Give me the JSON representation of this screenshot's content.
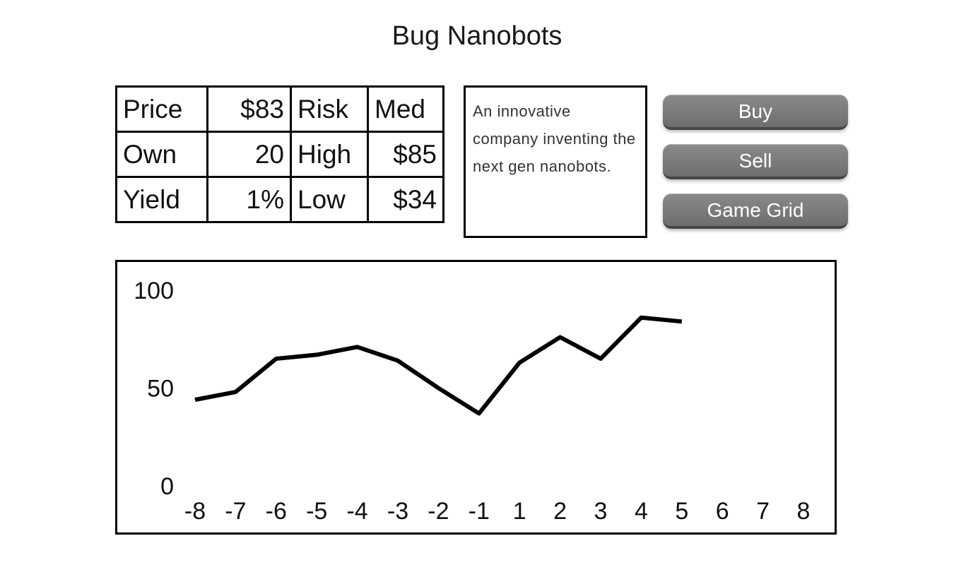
{
  "title": "Bug Nanobots",
  "stats": {
    "rows": [
      [
        "Price",
        "$83",
        "Risk",
        "Med"
      ],
      [
        "Own",
        "20",
        "High",
        "$85"
      ],
      [
        "Yield",
        "1%",
        "Low",
        "$34"
      ]
    ]
  },
  "description": "An innovative company inventing the next gen nanobots.",
  "buttons": {
    "buy": "Buy",
    "sell": "Sell",
    "game_grid": "Game Grid"
  },
  "chart_data": {
    "type": "line",
    "title": "",
    "xlabel": "",
    "ylabel": "",
    "x_ticks": [
      "-8",
      "-7",
      "-6",
      "-5",
      "-4",
      "-3",
      "-2",
      "-1",
      "1",
      "2",
      "3",
      "4",
      "5",
      "6",
      "7",
      "8"
    ],
    "y_ticks": [
      "0",
      "50",
      "100"
    ],
    "ylim": [
      0,
      100
    ],
    "series": [
      {
        "x": [
          "-8",
          "-7",
          "-6",
          "-5",
          "-4",
          "-3",
          "-2",
          "-1",
          "1",
          "2",
          "3",
          "4",
          "5"
        ],
        "values": [
          44,
          48,
          65,
          67,
          71,
          64,
          50,
          37,
          63,
          76,
          65,
          86,
          84
        ]
      }
    ],
    "grid": false,
    "line_color": "#000000"
  }
}
